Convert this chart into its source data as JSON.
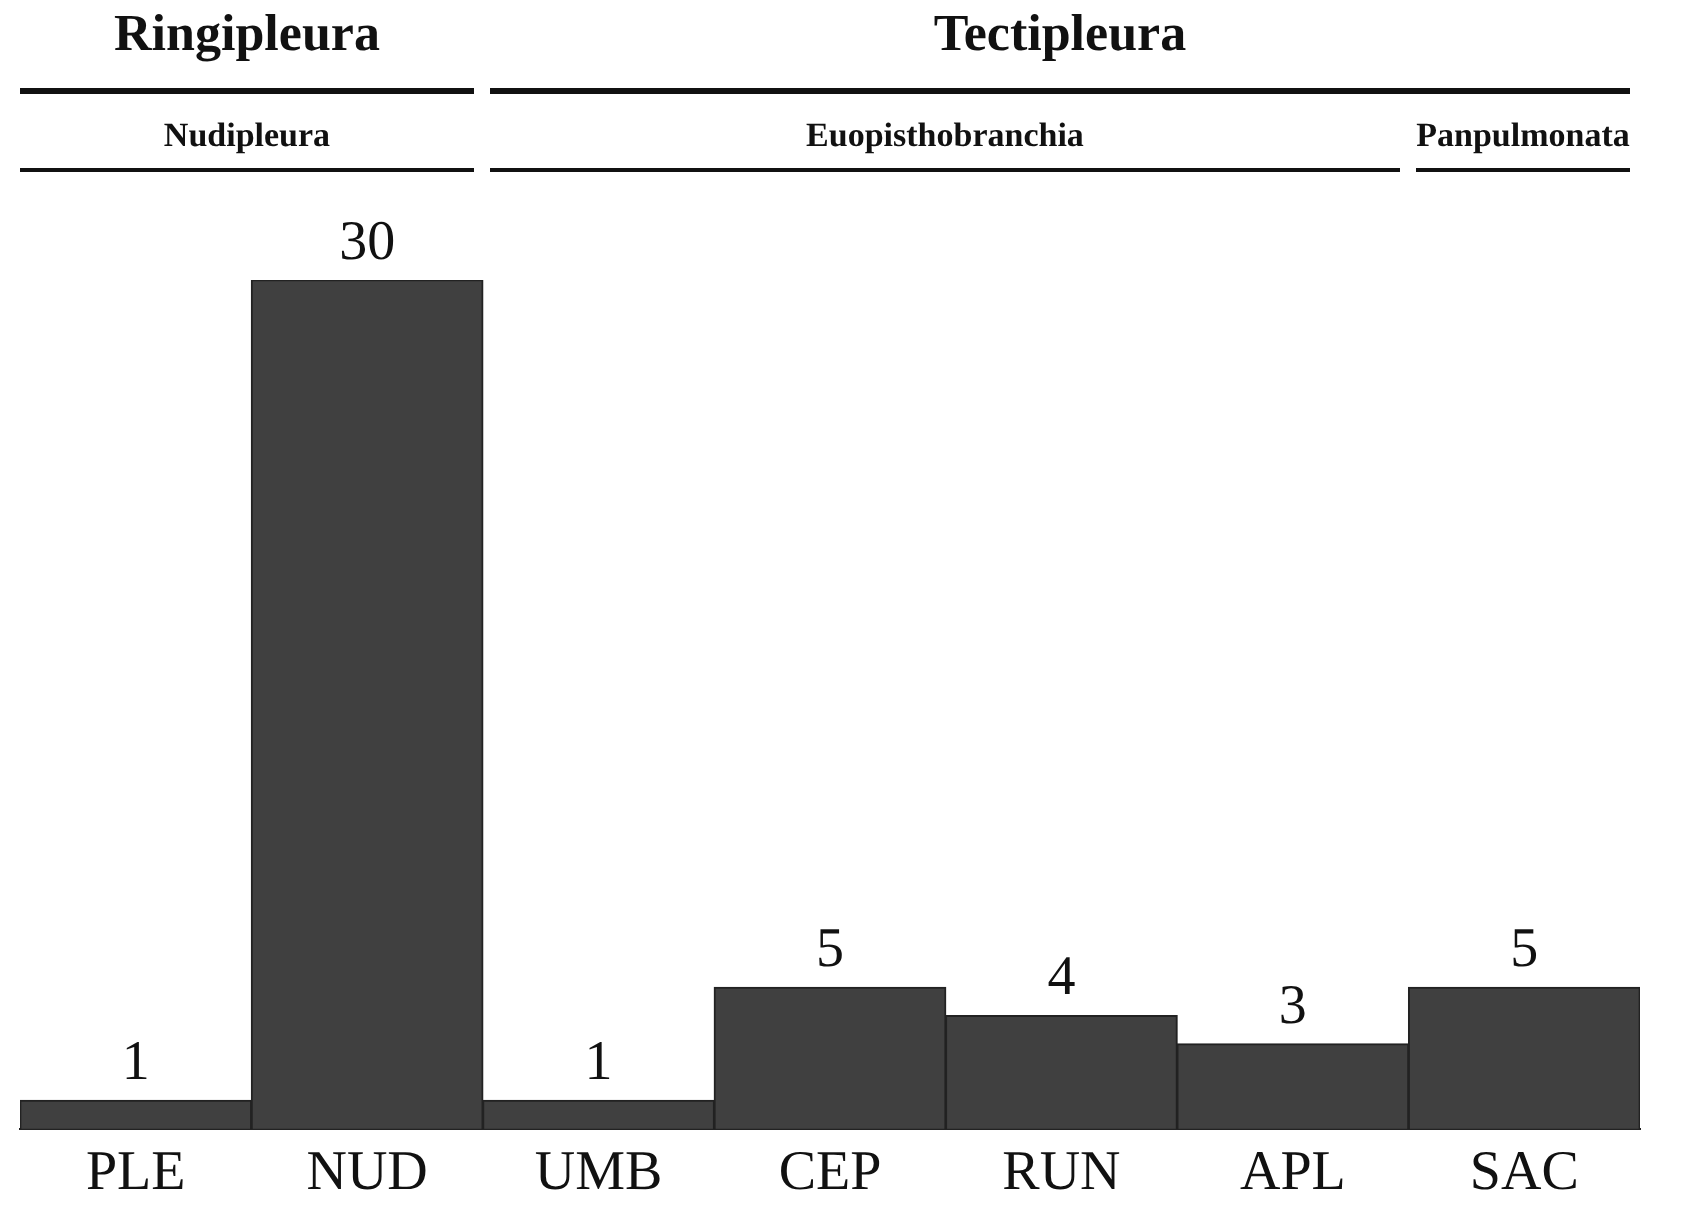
{
  "chart_data": {
    "type": "bar",
    "categories": [
      "PLE",
      "NUD",
      "UMB",
      "CEP",
      "RUN",
      "APL",
      "SAC"
    ],
    "values": [
      1,
      30,
      1,
      5,
      4,
      3,
      5
    ],
    "color": "#404040",
    "data_labels": true,
    "tick_labels": "x",
    "grid": false,
    "annotations": [
      "Ringipleura",
      "Tectipleura",
      "Nudipleura",
      "Euopisthobranchia",
      "Panpulmonata"
    ]
  }
}
